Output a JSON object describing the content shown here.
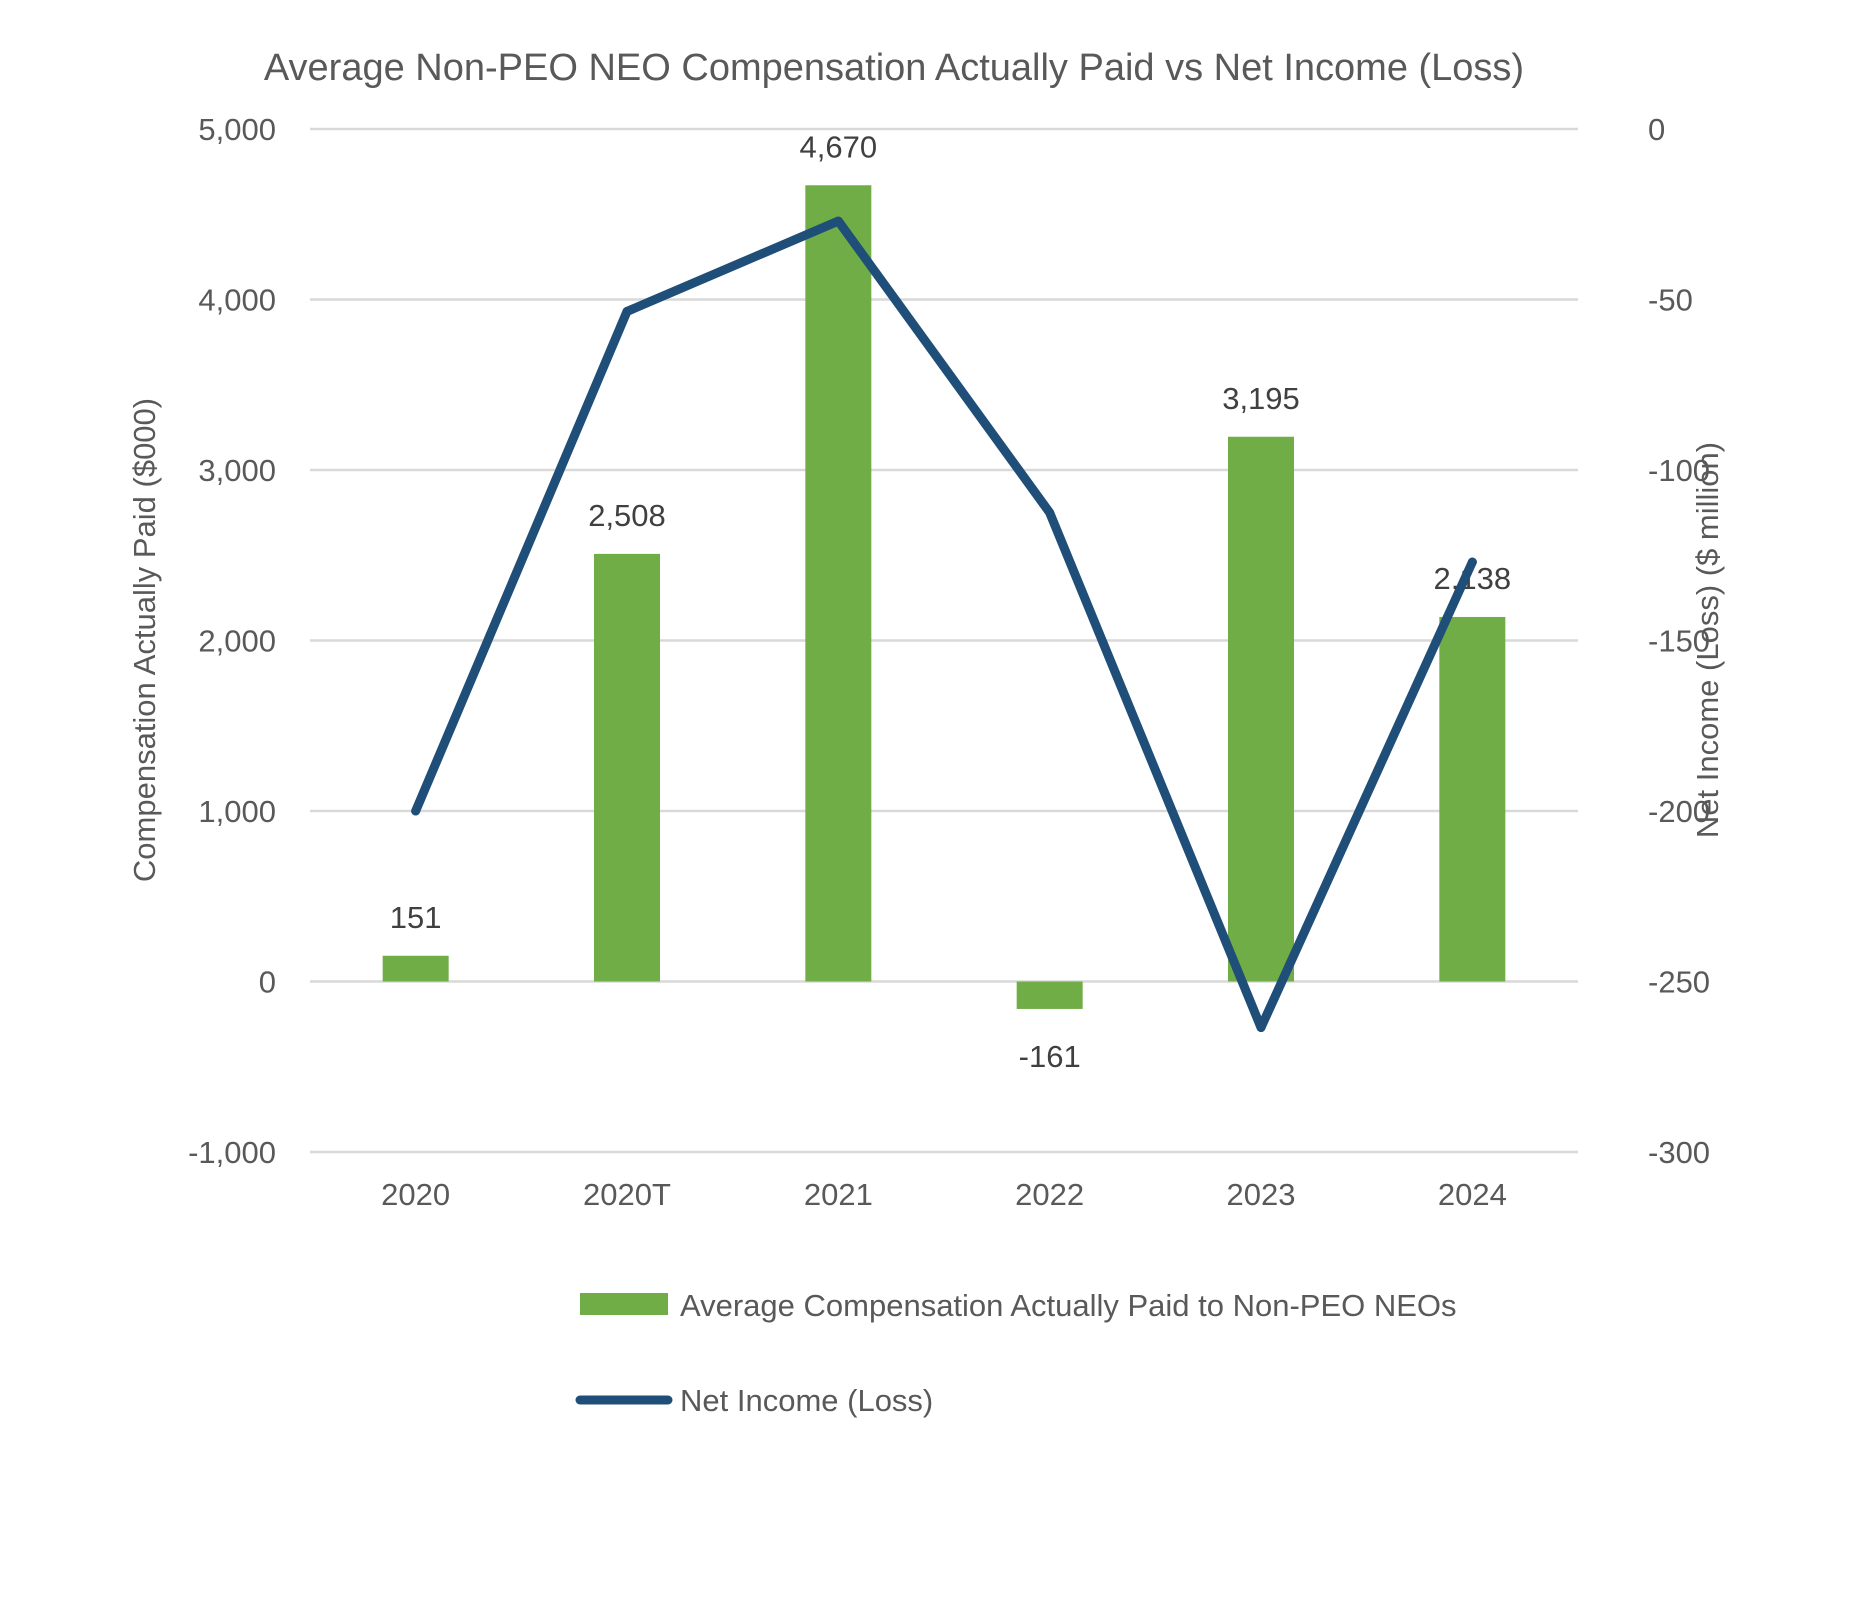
{
  "chart_data": {
    "type": "bar",
    "title": "Average Non-PEO NEO Compensation Actually Paid vs Net Income (Loss)",
    "categories": [
      "2020",
      "2020T",
      "2021",
      "2022",
      "2023",
      "2024"
    ],
    "series": [
      {
        "name": "Average Compensation Actually Paid to Non-PEO NEOs",
        "type": "bar",
        "axis": "left",
        "color": "#70ad47",
        "values": [
          151,
          2508,
          4670,
          -161,
          3195,
          2138
        ],
        "labels": [
          "151",
          "2,508",
          "4,670",
          "-161",
          "3,195",
          "2,138"
        ]
      },
      {
        "name": "Net Income (Loss)",
        "type": "line",
        "axis": "right",
        "color": "#1f4e79",
        "values": [
          -200,
          -53.5,
          -27,
          -112.5,
          -263.5,
          -127
        ]
      }
    ],
    "ylabel_left": "Compensation Actually Paid ($000)",
    "ylabel_right": "Net Income (Loss) ($ million)",
    "ylim_left": [
      -1000,
      5000
    ],
    "ylim_right": [
      -300,
      0
    ],
    "yticks_left": [
      5000,
      4000,
      3000,
      2000,
      1000,
      0,
      -1000
    ],
    "yticks_left_labels": [
      "5,000",
      "4,000",
      "3,000",
      "2,000",
      "1,000",
      "0",
      "-1,000"
    ],
    "yticks_right": [
      0,
      -50,
      -100,
      -150,
      -200,
      -250,
      -300
    ],
    "yticks_right_labels": [
      "0",
      "-50",
      "-100",
      "-150",
      "-200",
      "-250",
      "-300"
    ],
    "grid": true,
    "legend_position": "bottom"
  }
}
